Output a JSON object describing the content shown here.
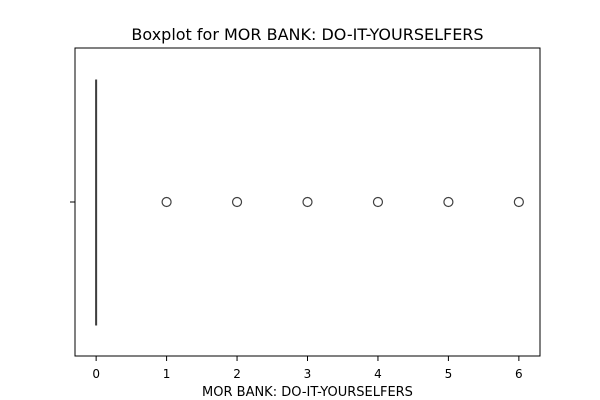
{
  "chart_data": {
    "type": "boxplot",
    "title": "Boxplot for MOR BANK: DO-IT-YOURSELFERS",
    "xlabel": "MOR BANK: DO-IT-YOURSELFERS",
    "ylabel": "",
    "orientation": "horizontal",
    "xlim": [
      -0.3,
      6.3
    ],
    "x_ticks": [
      0,
      1,
      2,
      3,
      4,
      5,
      6
    ],
    "box": {
      "q1": 0,
      "median": 0,
      "q3": 0,
      "whisker_low": 0,
      "whisker_high": 0
    },
    "outliers": [
      1,
      2,
      3,
      4,
      5,
      6
    ],
    "grid": false,
    "colors": {
      "box_fill": "#4c72b0",
      "line": "#3f3f3f",
      "outlier_edge": "#3f3f3f",
      "frame": "#000000"
    }
  }
}
